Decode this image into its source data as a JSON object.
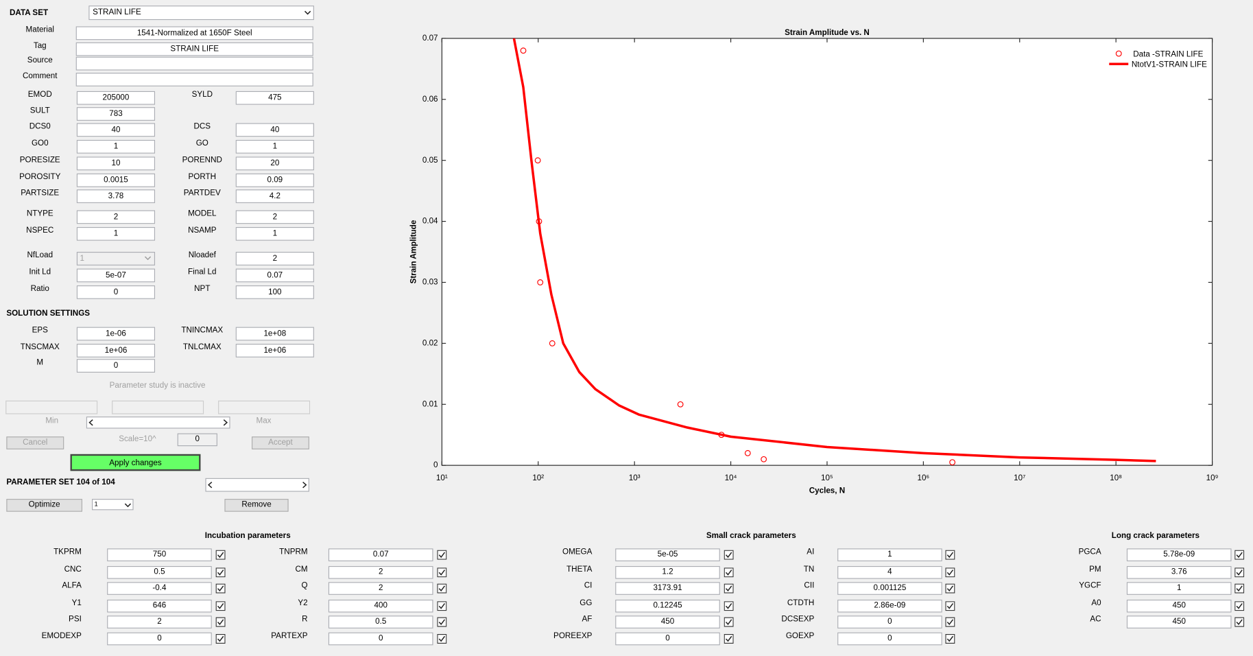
{
  "data_set": {
    "label": "DATA SET",
    "value": "STRAIN LIFE"
  },
  "info_fields": [
    {
      "label": "Material",
      "value": "1541-Normalized at 1650F Steel"
    },
    {
      "label": "Tag",
      "value": "STRAIN LIFE"
    },
    {
      "label": "Source"
    },
    {
      "label": "Comment"
    }
  ],
  "parameters": [
    [
      {
        "label": "EMOD",
        "value": "205000"
      },
      {
        "label": "SYLD",
        "value": "475"
      }
    ],
    [
      {
        "label": "SULT",
        "value": "783"
      }
    ],
    [
      {
        "label": "DCS0",
        "value": "40"
      },
      {
        "label": "DCS",
        "value": "40"
      }
    ],
    [
      {
        "label": "GO0",
        "value": "1"
      },
      {
        "label": "GO",
        "value": "1"
      }
    ],
    [
      {
        "label": "PORESIZE",
        "value": "10"
      },
      {
        "label": "PORENND",
        "value": "20"
      }
    ],
    [
      {
        "label": "POROSITY",
        "value": "0.0015"
      },
      {
        "label": "PORTH",
        "value": "0.09"
      }
    ],
    [
      {
        "label": "PARTSIZE",
        "value": "3.78"
      },
      {
        "label": "PARTDEV",
        "value": "4.2"
      }
    ],
    [
      {
        "label": "NTYPE",
        "value": "2"
      },
      {
        "label": "MODEL",
        "value": "2"
      }
    ],
    [
      {
        "label": "NSPEC",
        "value": "1"
      },
      {
        "label": "NSAMP",
        "value": "1"
      }
    ],
    [
      {
        "label": "NfLoad",
        "value": "1",
        "control": "dropdown",
        "enabled": false
      },
      {
        "label": "Nloadef",
        "value": "2"
      }
    ],
    [
      {
        "label": "Init Ld",
        "value": "5e-07"
      },
      {
        "label": "Final Ld",
        "value": "0.07"
      }
    ],
    [
      {
        "label": "Ratio",
        "value": "0"
      },
      {
        "label": "NPT",
        "value": "100"
      }
    ]
  ],
  "solution_settings": {
    "title": "SOLUTION SETTINGS",
    "rows": [
      [
        {
          "label": "EPS",
          "value": "1e-06"
        },
        {
          "label": "TNINCMAX",
          "value": "1e+08"
        }
      ],
      [
        {
          "label": "TNSCMAX",
          "value": "1e+06"
        },
        {
          "label": "TNLCMAX",
          "value": "1e+06"
        }
      ],
      [
        {
          "label": "M",
          "value": "0"
        }
      ]
    ]
  },
  "parameter_study": {
    "status": "Parameter study is inactive",
    "min_label": "Min",
    "max_label": "Max",
    "cancel": "Cancel",
    "scale_label": "Scale=10^",
    "scale_value": "0",
    "accept": "Accept"
  },
  "apply": "Apply changes",
  "parameter_set": {
    "label": "PARAMETER SET 104 of 104",
    "optimize": "Optimize",
    "selection": "1",
    "remove": "Remove"
  },
  "groups": [
    {
      "title": "Incubation parameters",
      "columns": [
        [
          {
            "label": "TKPRM",
            "value": "750"
          },
          {
            "label": "CNC",
            "value": "0.5"
          },
          {
            "label": "ALFA",
            "value": "-0.4"
          },
          {
            "label": "Y1",
            "value": "646"
          },
          {
            "label": "PSI",
            "value": "2"
          },
          {
            "label": "EMODEXP",
            "value": "0"
          }
        ],
        [
          {
            "label": "TNPRM",
            "value": "0.07"
          },
          {
            "label": "CM",
            "value": "2"
          },
          {
            "label": "Q",
            "value": "2"
          },
          {
            "label": "Y2",
            "value": "400"
          },
          {
            "label": "R",
            "value": "0.5"
          },
          {
            "label": "PARTEXP",
            "value": "0"
          }
        ]
      ]
    },
    {
      "title": "Small crack parameters",
      "columns": [
        [
          {
            "label": "OMEGA",
            "value": "5e-05"
          },
          {
            "label": "THETA",
            "value": "1.2"
          },
          {
            "label": "CI",
            "value": "3173.91"
          },
          {
            "label": "GG",
            "value": "0.12245"
          },
          {
            "label": "AF",
            "value": "450"
          },
          {
            "label": "POREEXP",
            "value": "0"
          }
        ],
        [
          {
            "label": "AI",
            "value": "1"
          },
          {
            "label": "TN",
            "value": "4"
          },
          {
            "label": "CII",
            "value": "0.001125"
          },
          {
            "label": "CTDTH",
            "value": "2.86e-09"
          },
          {
            "label": "DCSEXP",
            "value": "0"
          },
          {
            "label": "GOEXP",
            "value": "0"
          }
        ]
      ]
    },
    {
      "title": "Long crack parameters",
      "columns": [
        [
          {
            "label": "PGCA",
            "value": "5.78e-09"
          },
          {
            "label": "PM",
            "value": "3.76"
          },
          {
            "label": "YGCF",
            "value": "1"
          },
          {
            "label": "A0",
            "value": "450"
          },
          {
            "label": "AC",
            "value": "450"
          }
        ]
      ]
    }
  ],
  "chart_data": {
    "type": "line",
    "title": "Strain Amplitude vs. N",
    "x_label": "Cycles, N",
    "y_label": "Strain Amplitude",
    "xscale": "log",
    "xlim": [
      10,
      1000000000
    ],
    "ylim": [
      0,
      0.07
    ],
    "xticks": [
      {
        "value": 10,
        "label": "10¹"
      },
      {
        "value": 100,
        "label": "10²"
      },
      {
        "value": 1000,
        "label": "10³"
      },
      {
        "value": 10000,
        "label": "10⁴"
      },
      {
        "value": 100000,
        "label": "10⁵"
      },
      {
        "value": 1000000,
        "label": "10⁶"
      },
      {
        "value": 10000000,
        "label": "10⁷"
      },
      {
        "value": 100000000,
        "label": "10⁸"
      },
      {
        "value": 1000000000,
        "label": "10⁹"
      }
    ],
    "yticks": [
      0,
      0.01,
      0.02,
      0.03,
      0.04,
      0.05,
      0.06,
      0.07
    ],
    "legend": "northeast",
    "series": [
      {
        "name": "Data -STRAIN LIFE",
        "color": "#ff0000",
        "style": "markers",
        "x": [
          70,
          99,
          102,
          105,
          140,
          3000,
          8000,
          15000,
          22000,
          2000000
        ],
        "values": [
          0.068,
          0.05,
          0.04,
          0.03,
          0.02,
          0.01,
          0.005,
          0.002,
          0.001,
          0.0005
        ]
      },
      {
        "name": "NtotV1-STRAIN LIFE",
        "color": "#ff0000",
        "style": "line",
        "x": [
          56,
          70,
          85,
          105,
          137,
          182,
          267,
          392,
          695,
          1120,
          3530,
          10000,
          100000,
          1000000,
          10000000,
          100000000,
          260000000
        ],
        "values": [
          0.07,
          0.062,
          0.05,
          0.038,
          0.028,
          0.02,
          0.0153,
          0.0125,
          0.0098,
          0.0083,
          0.0062,
          0.0047,
          0.003,
          0.002,
          0.0013,
          0.0009,
          0.0007
        ]
      }
    ]
  }
}
